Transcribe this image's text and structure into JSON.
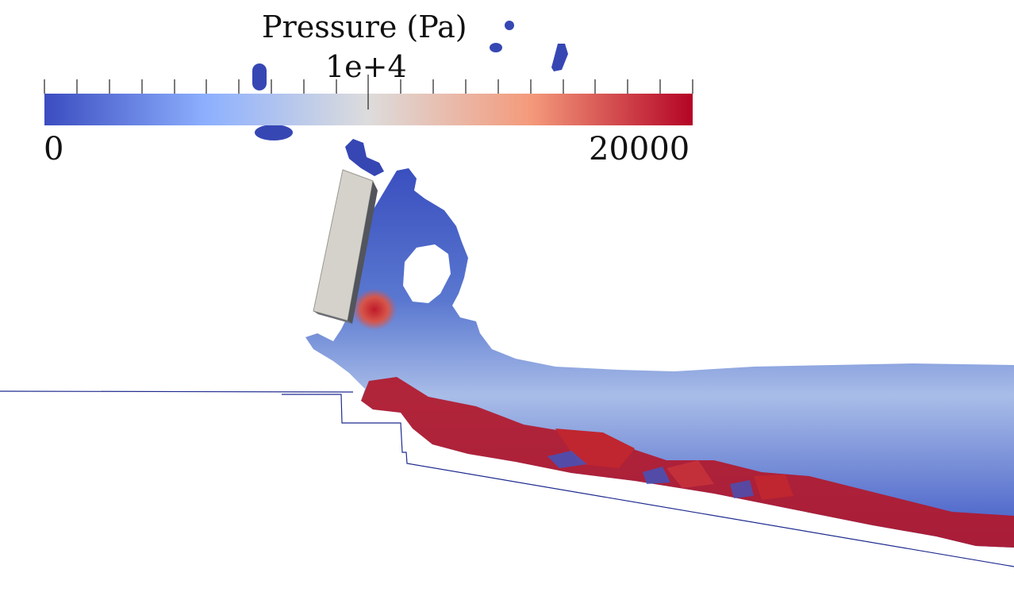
{
  "colorbar": {
    "title": "Pressure (Pa)",
    "mid_label": "1e+4",
    "min_label": "0",
    "max_label": "20000",
    "range": [
      0,
      20000
    ],
    "colormap": [
      "#3b4cc0",
      "#8db0fe",
      "#dddcdc",
      "#f49a7b",
      "#b40426"
    ]
  },
  "scene": {
    "background": "#ffffff",
    "boundary_color": "#1f2b8f",
    "block_color": "#d4d2cb"
  }
}
